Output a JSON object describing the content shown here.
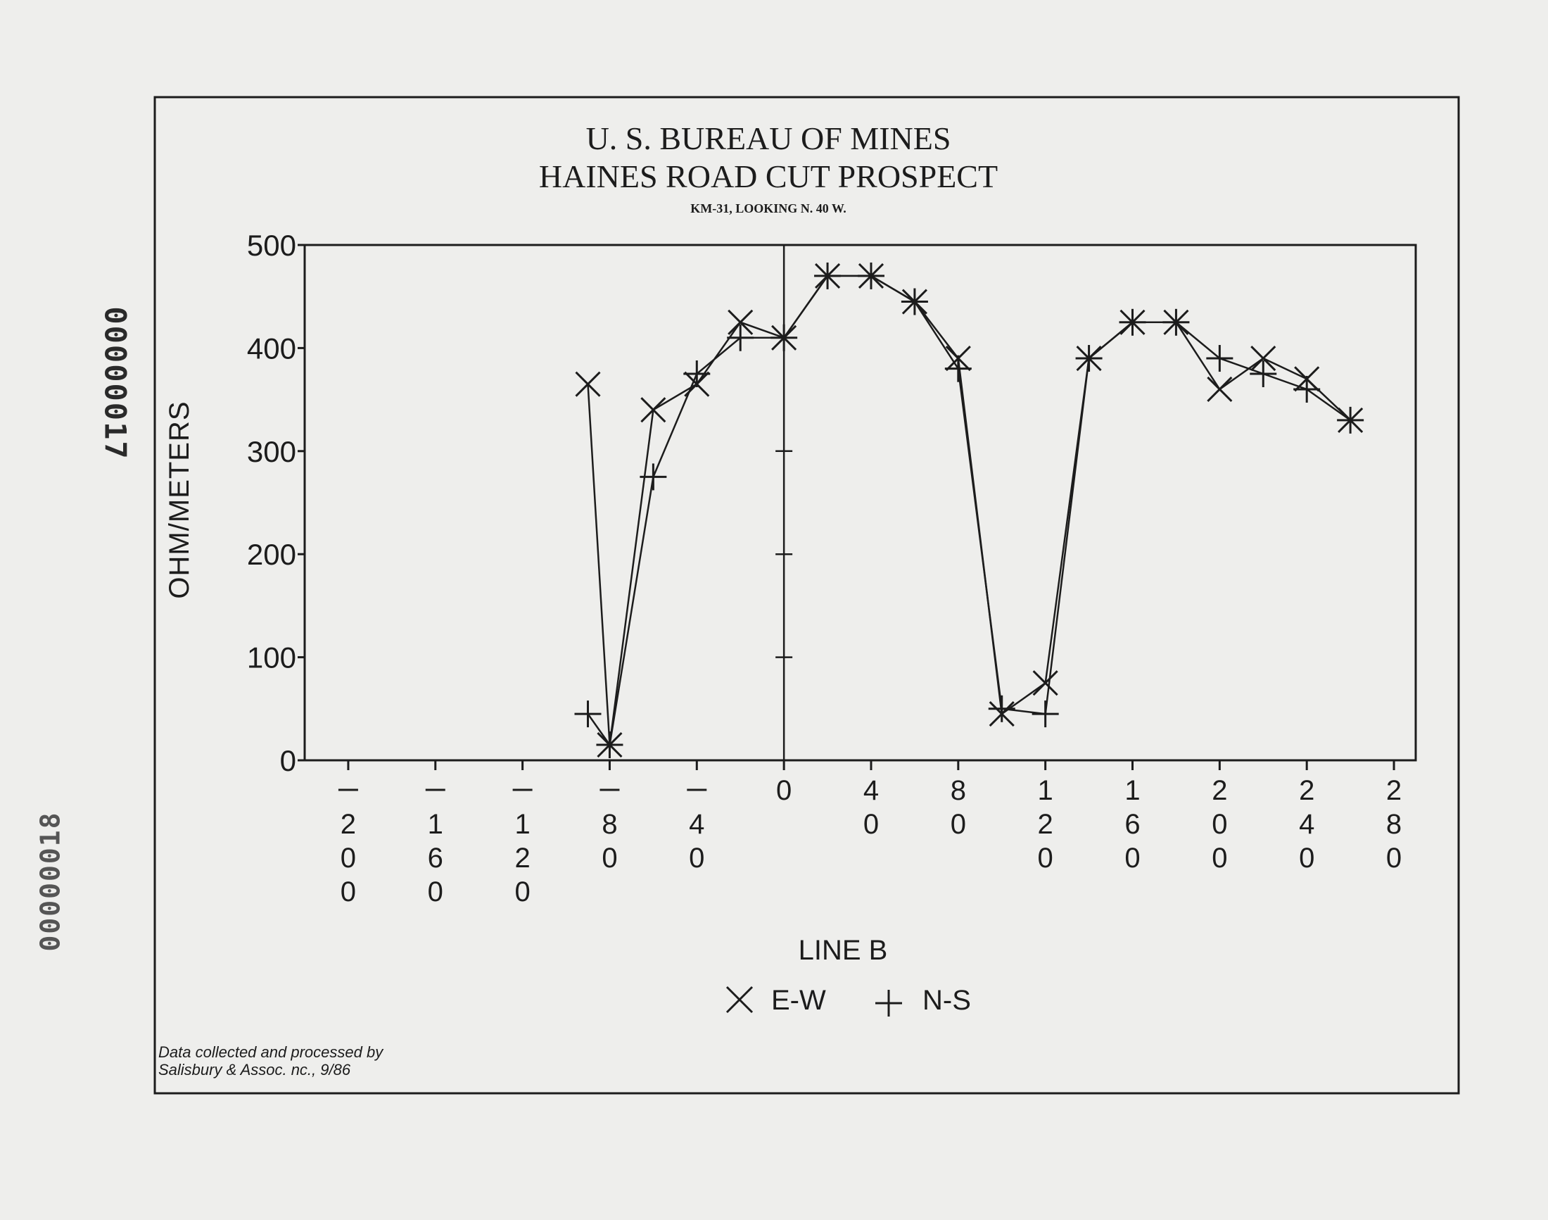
{
  "document_stamps": {
    "top": "00000017",
    "bottom": "00000018"
  },
  "chart_data": {
    "type": "line",
    "title": "U. S. BUREAU OF MINES",
    "subtitle": "HAINES ROAD CUT PROSPECT",
    "subtitle2": "KM-31, LOOKING N. 40 W.",
    "xlabel": "LINE B",
    "ylabel": "OHM/METERS",
    "xlim": [
      -220,
      290
    ],
    "ylim": [
      0,
      500
    ],
    "x_tick_values": [
      -200,
      -160,
      -120,
      -80,
      -40,
      0,
      40,
      80,
      120,
      160,
      200,
      240,
      280
    ],
    "x_tick_labels": [
      "-200",
      "-160",
      "-120",
      "-80",
      "-40",
      "0",
      "40",
      "80",
      "120",
      "160",
      "200",
      "240",
      "280"
    ],
    "y_ticks": [
      0,
      100,
      200,
      300,
      400,
      500
    ],
    "y_tick_labels": [
      "0",
      "100",
      "200",
      "300",
      "400",
      "500"
    ],
    "grid": false,
    "series": [
      {
        "name": "E-W",
        "marker": "x",
        "x": [
          -90,
          -80,
          -60,
          -40,
          -20,
          0,
          20,
          40,
          60,
          80,
          100,
          120,
          140,
          160,
          180,
          200,
          220,
          240,
          260
        ],
        "y": [
          365,
          15,
          340,
          365,
          425,
          410,
          470,
          470,
          445,
          390,
          45,
          75,
          390,
          425,
          425,
          360,
          390,
          370,
          330
        ]
      },
      {
        "name": "N-S",
        "marker": "+",
        "x": [
          -90,
          -80,
          -60,
          -40,
          -20,
          0,
          20,
          40,
          60,
          80,
          100,
          120,
          140,
          160,
          180,
          200,
          220,
          240,
          260
        ],
        "y": [
          45,
          15,
          275,
          375,
          410,
          410,
          470,
          470,
          445,
          380,
          50,
          45,
          390,
          425,
          425,
          390,
          375,
          360,
          330
        ]
      }
    ],
    "axis_inner_ticks": [
      100,
      200,
      300
    ],
    "legend": {
      "position": "bottom-center",
      "entries": [
        "E-W",
        "N-S"
      ]
    },
    "annotations": [
      "Data collected and processed by",
      "Salisbury & Assoc. nc., 9/86"
    ]
  }
}
